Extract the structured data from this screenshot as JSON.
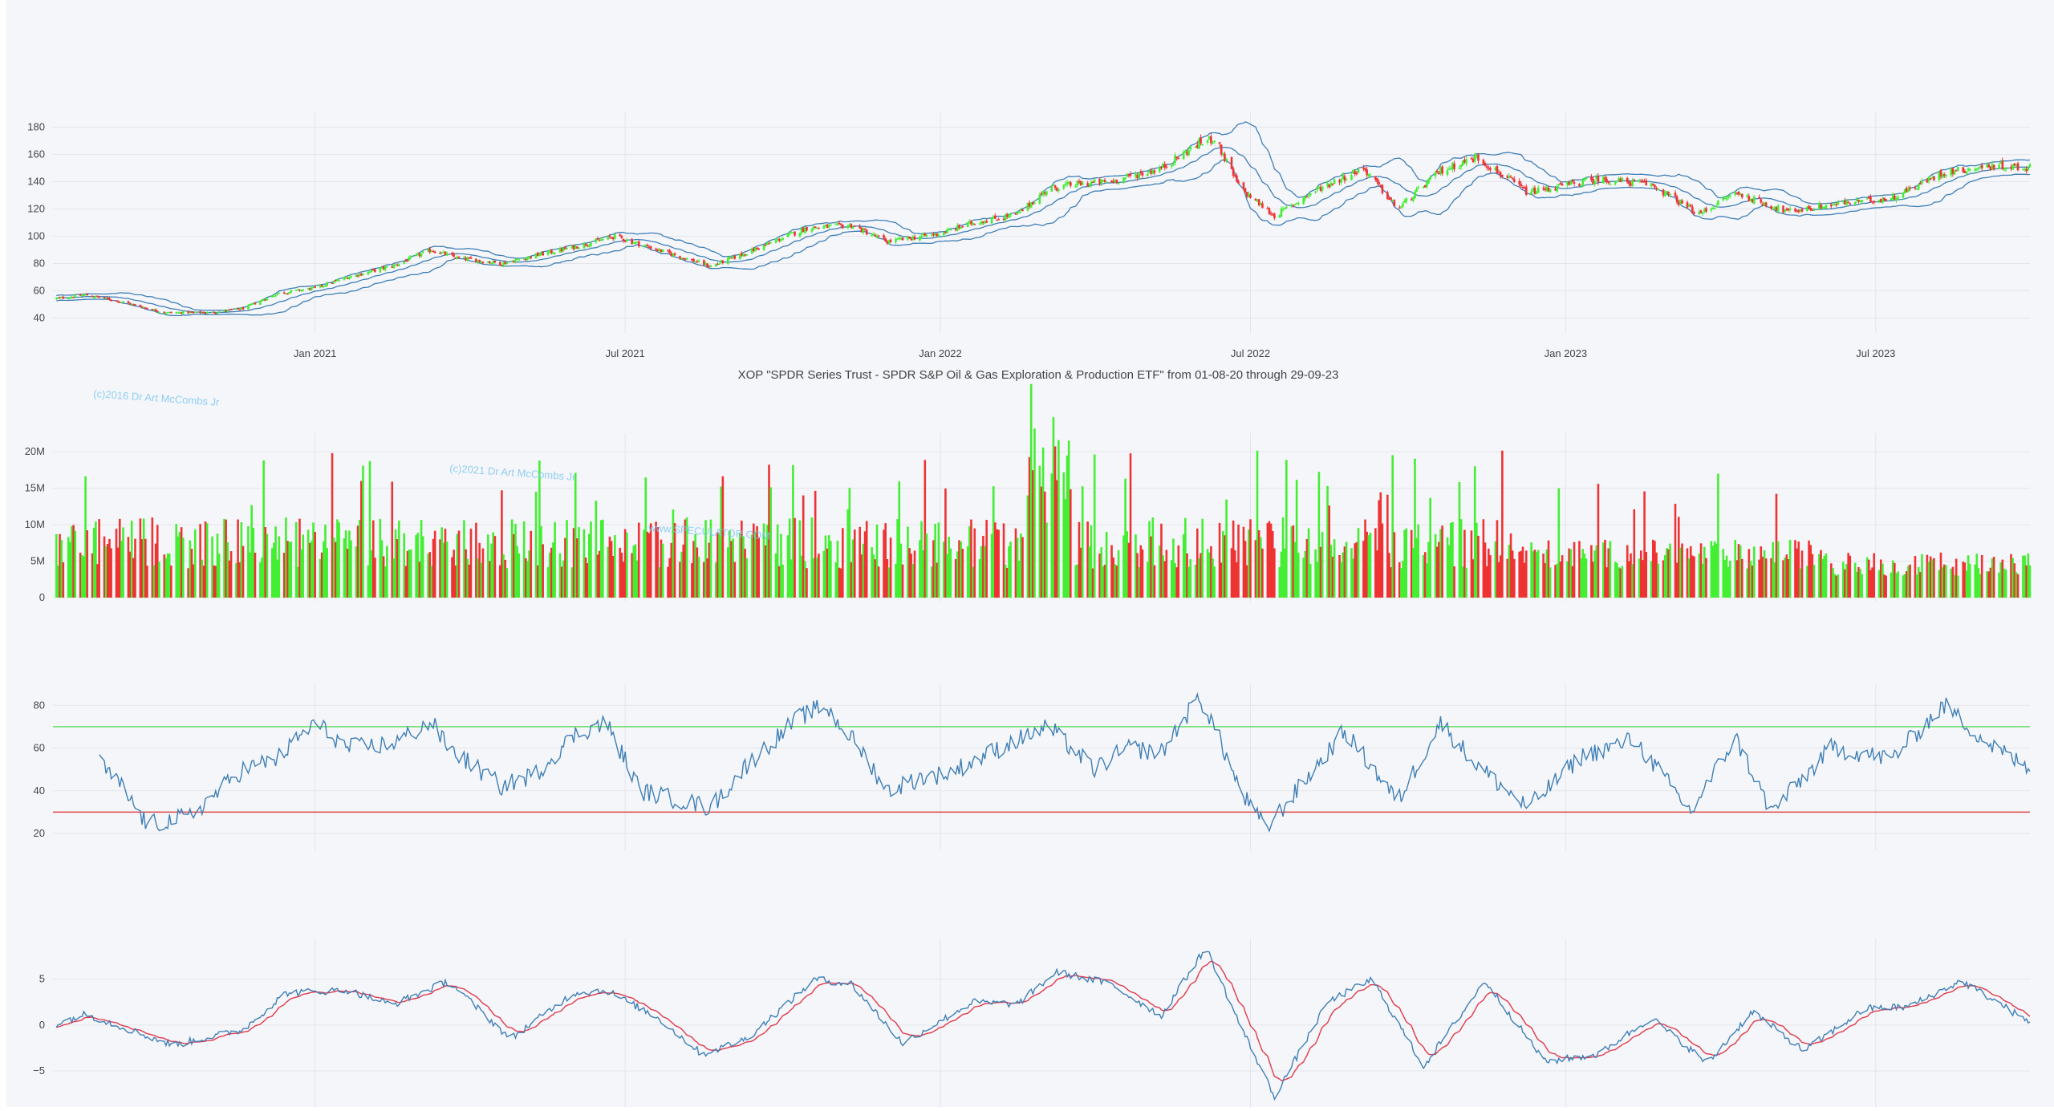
{
  "title": "XOP \"SPDR Series Trust - SPDR S&P Oil & Gas Exploration & Production ETF\" from 01-08-20 through 29-09-23",
  "watermarks": [
    "(c)2016 Dr Art McCombs Jr",
    "(c)2021 Dr Art McCombs Jr",
    "www.SPECULATOR.COM"
  ],
  "colors": {
    "up": "#44ee33",
    "down": "#ee3333",
    "band": "#3f7fb6",
    "rsi": "#3f7fb6",
    "overbought": "#66dd66",
    "oversold": "#dd4444",
    "macd": "#3f7fb6",
    "signal": "#e03a4a",
    "grid": "#e3e5ea"
  },
  "chart_data": [
    {
      "type": "candlestick",
      "name": "price",
      "x_range": [
        "2020-08-01",
        "2023-09-29"
      ],
      "x_ticks": [
        {
          "date": "2021-01-01",
          "label": "Jan 2021"
        },
        {
          "date": "2021-07-01",
          "label": "Jul 2021"
        },
        {
          "date": "2022-01-01",
          "label": "Jan 2022"
        },
        {
          "date": "2022-07-01",
          "label": "Jul 2022"
        },
        {
          "date": "2023-01-01",
          "label": "Jan 2023"
        },
        {
          "date": "2023-07-01",
          "label": "Jul 2023"
        }
      ],
      "y_ticks": [
        40,
        60,
        80,
        100,
        120,
        140,
        160,
        180
      ],
      "ylim": [
        32,
        188
      ],
      "bollinger_bands": true,
      "anchors": [
        [
          "2020-08-01",
          54
        ],
        [
          "2020-08-20",
          57
        ],
        [
          "2020-09-10",
          52
        ],
        [
          "2020-10-05",
          44
        ],
        [
          "2020-11-01",
          44
        ],
        [
          "2020-11-20",
          47
        ],
        [
          "2020-12-10",
          58
        ],
        [
          "2021-01-01",
          62
        ],
        [
          "2021-01-20",
          70
        ],
        [
          "2021-02-15",
          78
        ],
        [
          "2021-03-10",
          90
        ],
        [
          "2021-03-25",
          84
        ],
        [
          "2021-04-20",
          80
        ],
        [
          "2021-05-10",
          86
        ],
        [
          "2021-06-01",
          92
        ],
        [
          "2021-06-25",
          100
        ],
        [
          "2021-07-20",
          90
        ],
        [
          "2021-08-20",
          78
        ],
        [
          "2021-09-10",
          88
        ],
        [
          "2021-10-15",
          106
        ],
        [
          "2021-11-10",
          108
        ],
        [
          "2021-12-01",
          96
        ],
        [
          "2022-01-01",
          102
        ],
        [
          "2022-01-20",
          110
        ],
        [
          "2022-02-15",
          116
        ],
        [
          "2022-03-05",
          135
        ],
        [
          "2022-03-20",
          138
        ],
        [
          "2022-04-10",
          140
        ],
        [
          "2022-05-10",
          150
        ],
        [
          "2022-06-01",
          168
        ],
        [
          "2022-06-10",
          172
        ],
        [
          "2022-06-25",
          135
        ],
        [
          "2022-07-15",
          115
        ],
        [
          "2022-08-10",
          135
        ],
        [
          "2022-09-05",
          150
        ],
        [
          "2022-09-25",
          120
        ],
        [
          "2022-10-20",
          148
        ],
        [
          "2022-11-10",
          158
        ],
        [
          "2022-12-10",
          132
        ],
        [
          "2023-01-20",
          142
        ],
        [
          "2023-02-20",
          138
        ],
        [
          "2023-03-20",
          116
        ],
        [
          "2023-04-10",
          132
        ],
        [
          "2023-05-10",
          118
        ],
        [
          "2023-06-10",
          124
        ],
        [
          "2023-07-10",
          128
        ],
        [
          "2023-08-10",
          147
        ],
        [
          "2023-09-10",
          152
        ],
        [
          "2023-09-29",
          150
        ]
      ]
    },
    {
      "type": "bar",
      "name": "volume",
      "x_range": [
        "2020-08-01",
        "2023-09-29"
      ],
      "y_ticks": [
        {
          "value": 0,
          "label": "0"
        },
        {
          "value": 5,
          "label": "5M"
        },
        {
          "value": 10,
          "label": "10M"
        },
        {
          "value": 15,
          "label": "15M"
        },
        {
          "value": 20,
          "label": "20M"
        }
      ],
      "ylim": [
        0,
        22
      ],
      "units": "millions of shares",
      "up_down_colored": true
    },
    {
      "type": "line",
      "name": "rsi",
      "y_ticks": [
        20,
        40,
        60,
        80
      ],
      "ylim": [
        14,
        88
      ],
      "overbought": 70,
      "oversold": 30,
      "anchors": [
        [
          "2020-08-28",
          53
        ],
        [
          "2020-09-10",
          42
        ],
        [
          "2020-09-25",
          24
        ],
        [
          "2020-10-20",
          28
        ],
        [
          "2020-11-20",
          50
        ],
        [
          "2020-12-10",
          55
        ],
        [
          "2021-01-01",
          72
        ],
        [
          "2021-01-20",
          60
        ],
        [
          "2021-02-15",
          62
        ],
        [
          "2021-03-10",
          72
        ],
        [
          "2021-03-20",
          60
        ],
        [
          "2021-04-20",
          42
        ],
        [
          "2021-05-10",
          48
        ],
        [
          "2021-06-01",
          66
        ],
        [
          "2021-06-20",
          72
        ],
        [
          "2021-07-10",
          40
        ],
        [
          "2021-08-20",
          32
        ],
        [
          "2021-09-10",
          52
        ],
        [
          "2021-10-10",
          74
        ],
        [
          "2021-10-25",
          80
        ],
        [
          "2021-11-15",
          60
        ],
        [
          "2021-12-01",
          40
        ],
        [
          "2021-12-20",
          46
        ],
        [
          "2022-01-05",
          48
        ],
        [
          "2022-02-10",
          62
        ],
        [
          "2022-03-05",
          70
        ],
        [
          "2022-04-01",
          50
        ],
        [
          "2022-04-20",
          60
        ],
        [
          "2022-05-10",
          58
        ],
        [
          "2022-06-01",
          84
        ],
        [
          "2022-06-10",
          70
        ],
        [
          "2022-06-25",
          40
        ],
        [
          "2022-07-10",
          22
        ],
        [
          "2022-08-05",
          48
        ],
        [
          "2022-08-25",
          68
        ],
        [
          "2022-09-25",
          35
        ],
        [
          "2022-10-20",
          72
        ],
        [
          "2022-11-10",
          52
        ],
        [
          "2022-12-10",
          32
        ],
        [
          "2023-01-10",
          56
        ],
        [
          "2023-02-10",
          64
        ],
        [
          "2023-03-15",
          30
        ],
        [
          "2023-04-10",
          65
        ],
        [
          "2023-05-01",
          30
        ],
        [
          "2023-06-05",
          60
        ],
        [
          "2023-07-10",
          55
        ],
        [
          "2023-08-10",
          80
        ],
        [
          "2023-09-05",
          62
        ],
        [
          "2023-09-29",
          50
        ]
      ]
    },
    {
      "type": "line",
      "name": "macd",
      "y_ticks": [
        {
          "value": -5,
          "label": "−5"
        },
        {
          "value": 0,
          "label": "0"
        },
        {
          "value": 5,
          "label": "5"
        }
      ],
      "ylim": [
        -8.5,
        9
      ],
      "series_count": 2,
      "anchors": [
        [
          "2020-08-01",
          0
        ],
        [
          "2020-08-20",
          1.2
        ],
        [
          "2020-10-10",
          -2.2
        ],
        [
          "2020-11-20",
          -0.5
        ],
        [
          "2020-12-15",
          3.5
        ],
        [
          "2021-01-20",
          3.8
        ],
        [
          "2021-02-15",
          2.2
        ],
        [
          "2021-03-20",
          4.8
        ],
        [
          "2021-04-25",
          -1.5
        ],
        [
          "2021-06-01",
          3.5
        ],
        [
          "2021-06-20",
          3.8
        ],
        [
          "2021-07-20",
          0.8
        ],
        [
          "2021-08-15",
          -3.2
        ],
        [
          "2021-09-10",
          -1.5
        ],
        [
          "2021-10-20",
          5.0
        ],
        [
          "2021-11-10",
          4.5
        ],
        [
          "2021-12-10",
          -2.0
        ],
        [
          "2022-01-20",
          2.5
        ],
        [
          "2022-02-15",
          2.3
        ],
        [
          "2022-03-10",
          5.8
        ],
        [
          "2022-04-10",
          4.5
        ],
        [
          "2022-05-10",
          1.0
        ],
        [
          "2022-06-05",
          8.5
        ],
        [
          "2022-06-25",
          0
        ],
        [
          "2022-07-15",
          -7.8
        ],
        [
          "2022-08-15",
          2.5
        ],
        [
          "2022-09-10",
          5.0
        ],
        [
          "2022-10-10",
          -4.5
        ],
        [
          "2022-11-15",
          4.8
        ],
        [
          "2022-12-20",
          -4.0
        ],
        [
          "2023-01-20",
          -3.2
        ],
        [
          "2023-02-20",
          0.8
        ],
        [
          "2023-03-25",
          -4.2
        ],
        [
          "2023-04-20",
          1.5
        ],
        [
          "2023-05-20",
          -2.8
        ],
        [
          "2023-06-25",
          1.8
        ],
        [
          "2023-07-20",
          2.0
        ],
        [
          "2023-08-20",
          4.8
        ],
        [
          "2023-09-10",
          2.5
        ],
        [
          "2023-09-29",
          0.2
        ]
      ]
    }
  ]
}
